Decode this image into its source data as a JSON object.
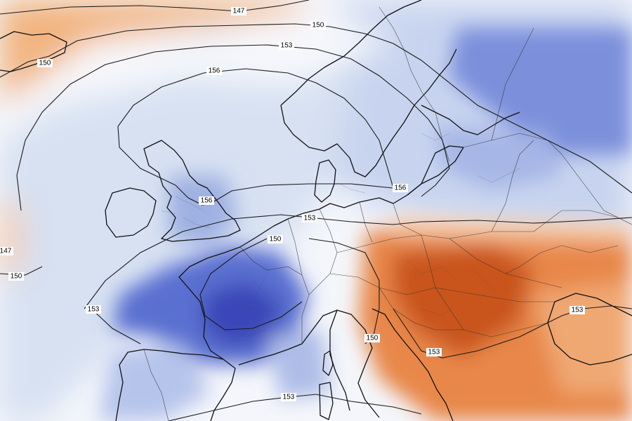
{
  "map": {
    "kind": "geopotential-height-anomaly",
    "region": "Europe",
    "colors": {
      "warm_strong": "#c9541b",
      "warm_mid": "#e8874a",
      "warm_light": "#f5c7a3",
      "neutral": "#ffffff",
      "cool_light": "#d7e1f2",
      "cool_mid": "#9fb1e2",
      "cool_strong": "#5a6fd0",
      "cool_deep": "#3a47b8",
      "coastline": "#111111",
      "contour": "#1a1a1a"
    },
    "contour_labels": [
      {
        "id": "147-top",
        "text": "147"
      },
      {
        "id": "150-top",
        "text": "150"
      },
      {
        "id": "150-left",
        "text": "150"
      },
      {
        "id": "153-top",
        "text": "153"
      },
      {
        "id": "156-top",
        "text": "156"
      },
      {
        "id": "156-east",
        "text": "156"
      },
      {
        "id": "156-uk",
        "text": "156"
      },
      {
        "id": "153-benelux",
        "text": "153"
      },
      {
        "id": "150-france",
        "text": "150"
      },
      {
        "id": "147-west",
        "text": "147"
      },
      {
        "id": "150-west",
        "text": "150"
      },
      {
        "id": "153-biscay",
        "text": "153"
      },
      {
        "id": "150-adriatic",
        "text": "150"
      },
      {
        "id": "153-balkans",
        "text": "153"
      },
      {
        "id": "153-blacksea",
        "text": "153"
      },
      {
        "id": "153-med",
        "text": "153"
      }
    ]
  }
}
